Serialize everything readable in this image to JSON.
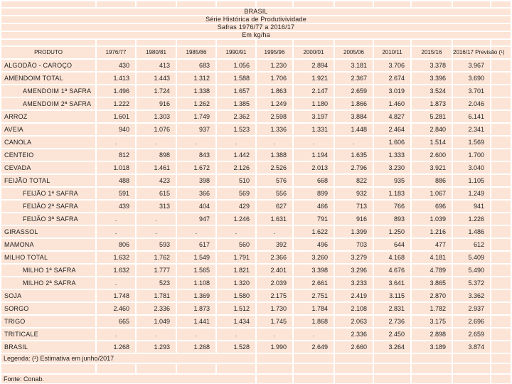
{
  "title": {
    "line1": "BRASIL",
    "line2": "Série Histórica de Produtivividade",
    "line3": "Safras 1976/77 a 2016/17",
    "line4": "Em kg/ha"
  },
  "table": {
    "columns": [
      "PRODUTO",
      "1976/77",
      "1980/81",
      "1985/86",
      "1990/91",
      "1995/96",
      "2000/01",
      "2005/06",
      "2010/11",
      "2015/16",
      "2016/17 Previsão (¹)"
    ],
    "rows": [
      {
        "product": "ALGODÃO - CAROÇO",
        "indent": false,
        "values": [
          "430",
          "413",
          "683",
          "1.056",
          "1.230",
          "2.894",
          "3.181",
          "3.706",
          "3.378",
          "3.967"
        ]
      },
      {
        "product": "AMENDOIM TOTAL",
        "indent": false,
        "values": [
          "1.413",
          "1.443",
          "1.312",
          "1.588",
          "1.706",
          "1.921",
          "2.367",
          "2.674",
          "3.396",
          "3.690"
        ]
      },
      {
        "product": "AMENDOIM 1ª SAFRA",
        "indent": true,
        "values": [
          "1.496",
          "1.724",
          "1.338",
          "1.657",
          "1.863",
          "2.147",
          "2.659",
          "3.019",
          "3.524",
          "3.701"
        ]
      },
      {
        "product": "AMENDOIM 2ª SAFRA",
        "indent": true,
        "values": [
          "1.222",
          "916",
          "1.262",
          "1.385",
          "1.249",
          "1.180",
          "1.866",
          "1.460",
          "1.873",
          "2.046"
        ]
      },
      {
        "product": "ARROZ",
        "indent": false,
        "values": [
          "1.601",
          "1.303",
          "1.749",
          "2.362",
          "2.598",
          "3.197",
          "3.884",
          "4.827",
          "5.281",
          "6.141"
        ]
      },
      {
        "product": "AVEIA",
        "indent": false,
        "values": [
          "940",
          "1.076",
          "937",
          "1.523",
          "1.336",
          "1.331",
          "1.448",
          "2.464",
          "2.840",
          "2.341"
        ]
      },
      {
        "product": "CANOLA",
        "indent": false,
        "values": [
          ".",
          ".",
          ".",
          ".",
          ".",
          ".",
          ".",
          "1.606",
          "1.514",
          "1.569"
        ]
      },
      {
        "product": "CENTEIO",
        "indent": false,
        "values": [
          "812",
          "898",
          "843",
          "1.442",
          "1.388",
          "1.194",
          "1.635",
          "1.333",
          "2.600",
          "1.700"
        ]
      },
      {
        "product": "CEVADA",
        "indent": false,
        "values": [
          "1.018",
          "1.461",
          "1.672",
          "2.126",
          "2.526",
          "2.013",
          "2.796",
          "3.230",
          "3.921",
          "3.040"
        ]
      },
      {
        "product": "FEIJÃO TOTAL",
        "indent": false,
        "values": [
          "488",
          "423",
          "398",
          "510",
          "576",
          "668",
          "822",
          "935",
          "886",
          "1.105"
        ]
      },
      {
        "product": "FEIJÃO 1ª SAFRA",
        "indent": true,
        "values": [
          "591",
          "615",
          "366",
          "569",
          "556",
          "899",
          "932",
          "1.183",
          "1.067",
          "1.249"
        ]
      },
      {
        "product": "FEIJÃO 2ª SAFRA",
        "indent": true,
        "values": [
          "439",
          "313",
          "404",
          "429",
          "627",
          "466",
          "713",
          "766",
          "696",
          "941"
        ]
      },
      {
        "product": "FEIJÃO 3ª SAFRA",
        "indent": true,
        "values": [
          ".",
          ".",
          "947",
          "1.246",
          "1.631",
          "791",
          "916",
          "893",
          "1.039",
          "1.226"
        ]
      },
      {
        "product": "GIRASSOL",
        "indent": false,
        "values": [
          ".",
          ".",
          ".",
          ".",
          ".",
          "1.622",
          "1.399",
          "1.250",
          "1.216",
          "1.486"
        ]
      },
      {
        "product": "MAMONA",
        "indent": false,
        "values": [
          "806",
          "593",
          "617",
          "560",
          "392",
          "496",
          "703",
          "644",
          "477",
          "612"
        ]
      },
      {
        "product": "MILHO TOTAL",
        "indent": false,
        "values": [
          "1.632",
          "1.762",
          "1.549",
          "1.791",
          "2.366",
          "3.260",
          "3.279",
          "4.168",
          "4.181",
          "5.409"
        ]
      },
      {
        "product": "MILHO 1ª SAFRA",
        "indent": true,
        "values": [
          "1.632",
          "1.777",
          "1.565",
          "1.821",
          "2.401",
          "3.398",
          "3.296",
          "4.676",
          "4.789",
          "5.490"
        ]
      },
      {
        "product": "MILHO 2ª SAFRA",
        "indent": true,
        "values": [
          ".",
          "523",
          "1.108",
          "1.320",
          "2.039",
          "2.661",
          "3.233",
          "3.641",
          "3.865",
          "5.372"
        ]
      },
      {
        "product": "SOJA",
        "indent": false,
        "values": [
          "1.748",
          "1.781",
          "1.369",
          "1.580",
          "2.175",
          "2.751",
          "2.419",
          "3.115",
          "2.870",
          "3.362"
        ]
      },
      {
        "product": "SORGO",
        "indent": false,
        "values": [
          "2.460",
          "2.336",
          "1.873",
          "1.512",
          "1.730",
          "1.784",
          "2.108",
          "2.831",
          "1.782",
          "2.937"
        ]
      },
      {
        "product": "TRIGO",
        "indent": false,
        "values": [
          "665",
          "1.049",
          "1.441",
          "1.434",
          "1.745",
          "1.868",
          "2.063",
          "2.736",
          "3.175",
          "2.696"
        ]
      },
      {
        "product": "TRITICALE",
        "indent": false,
        "values": [
          ".",
          ".",
          ".",
          ".",
          ".",
          ".",
          "2.336",
          "2.450",
          "2.898",
          "2.659"
        ]
      },
      {
        "product": "BRASIL",
        "indent": false,
        "values": [
          "1.268",
          "1.293",
          "1.268",
          "1.528",
          "1.990",
          "2.649",
          "2.660",
          "3.264",
          "3.189",
          "3.874"
        ]
      }
    ],
    "missing_value_symbol": "."
  },
  "footer": {
    "legend": "Legenda: (¹) Estimativa em junho/2017",
    "source": "Fonte: Conab."
  },
  "colors": {
    "cell_fill": "#fce4d6",
    "gridline": "#ffffff",
    "text": "#1f1f1f"
  }
}
